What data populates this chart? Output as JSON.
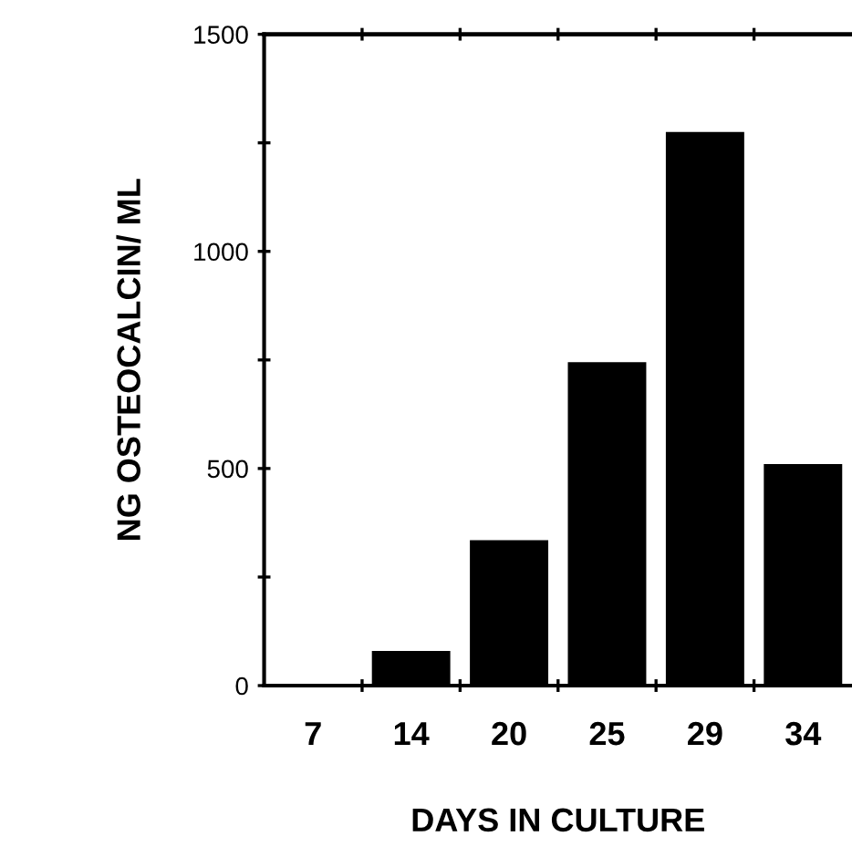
{
  "chart_data": {
    "type": "bar",
    "xlabel": "DAYS IN CULTURE",
    "ylabel": "NG OSTEOCALCIN/ ML",
    "categories": [
      "7",
      "14",
      "20",
      "25",
      "29",
      "34"
    ],
    "values": [
      0,
      80,
      335,
      745,
      1275,
      510
    ],
    "color": "#000000",
    "ylim": [
      0,
      1500
    ],
    "yticks": [
      0,
      {
        "value": 250,
        "label": null
      },
      500,
      {
        "value": 750,
        "label": null
      },
      1000,
      {
        "value": 1250,
        "label": null
      },
      1500
    ],
    "grid": false
  }
}
